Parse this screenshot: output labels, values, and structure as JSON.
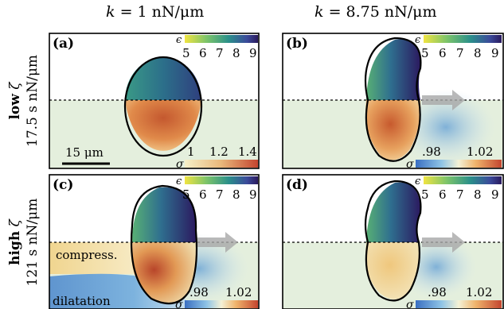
{
  "columns": [
    {
      "k_symbol": "k",
      "k_value": "= 1 nN/μm"
    },
    {
      "k_symbol": "k",
      "k_value": "= 8.75 nN/μm"
    }
  ],
  "rows": [
    {
      "label": "low",
      "symbol": "ζ",
      "value": "17.5 s nN/μm"
    },
    {
      "label": "high",
      "symbol": "ζ",
      "value": "121 s nN/μm"
    }
  ],
  "panels": [
    {
      "tag": "(a)",
      "epsilon_symbol": "ϵ",
      "epsilon_ticks": [
        "5",
        "6",
        "7",
        "8",
        "9"
      ],
      "sigma_symbol": "σ",
      "sigma_ticks": [
        "1",
        "1.2",
        "1.4"
      ],
      "scalebar_label": "15 μm",
      "has_arrow": false
    },
    {
      "tag": "(b)",
      "epsilon_symbol": "ϵ",
      "epsilon_ticks": [
        "5",
        "6",
        "7",
        "8",
        "9"
      ],
      "sigma_symbol": "σ",
      "sigma_ticks": [
        ".98",
        "1.02"
      ],
      "has_arrow": true
    },
    {
      "tag": "(c)",
      "epsilon_symbol": "ϵ",
      "epsilon_ticks": [
        "5",
        "6",
        "7",
        "8",
        "9"
      ],
      "sigma_symbol": "σ",
      "sigma_ticks": [
        ".98",
        "1.02"
      ],
      "has_arrow": true,
      "compress_label": "compress.",
      "dilatation_label": "dilatation"
    },
    {
      "tag": "(d)",
      "epsilon_symbol": "ϵ",
      "epsilon_ticks": [
        "5",
        "6",
        "7",
        "8",
        "9"
      ],
      "sigma_symbol": "σ",
      "sigma_ticks": [
        ".98",
        "1.02"
      ],
      "has_arrow": true
    }
  ],
  "colors": {
    "substrate_light": "#e6efd9",
    "stress_warm": "#d07a3e",
    "stress_cool": "#6ea6d6",
    "strain_dark": "#3b2a7a",
    "strain_mid": "#2a8f8a",
    "strain_light": "#c9df57",
    "frame": "#000000"
  }
}
